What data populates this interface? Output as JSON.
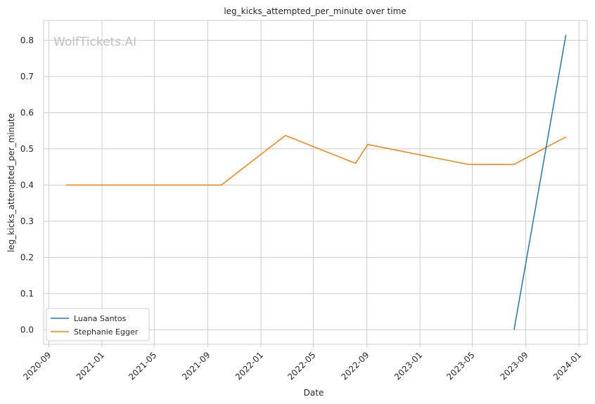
{
  "chart_data": {
    "type": "line",
    "title": "leg_kicks_attempted_per_minute over time",
    "xlabel": "Date",
    "ylabel": "leg_kicks_attempted_per_minute",
    "watermark": "WolfTickets.AI",
    "xlim": [
      "2020-08-20",
      "2024-01-20"
    ],
    "ylim": [
      -0.04,
      0.855
    ],
    "x_ticks": [
      "2020-09-01",
      "2021-01-01",
      "2021-05-01",
      "2021-09-01",
      "2022-01-01",
      "2022-05-01",
      "2022-09-01",
      "2023-01-01",
      "2023-05-01",
      "2023-09-01",
      "2024-01-01"
    ],
    "x_tick_labels": [
      "2020-09",
      "2021-01",
      "2021-05",
      "2021-09",
      "2022-01",
      "2022-05",
      "2022-09",
      "2023-01",
      "2023-05",
      "2023-09",
      "2024-01"
    ],
    "y_ticks": [
      0.0,
      0.1,
      0.2,
      0.3,
      0.4,
      0.5,
      0.6,
      0.7,
      0.8
    ],
    "y_tick_labels": [
      "0.0",
      "0.1",
      "0.2",
      "0.3",
      "0.4",
      "0.5",
      "0.6",
      "0.7",
      "0.8"
    ],
    "grid": true,
    "legend_position": "lower-left",
    "series": [
      {
        "name": "Luana Santos",
        "color": "#1f77b4",
        "x": [
          "2023-08-05",
          "2023-12-02"
        ],
        "y": [
          0.0,
          0.815
        ]
      },
      {
        "name": "Stephanie Egger",
        "color": "#ff7f0e",
        "x": [
          "2020-10-10",
          "2021-10-02",
          "2022-02-26",
          "2022-08-06",
          "2022-09-03",
          "2023-04-22",
          "2023-08-05",
          "2023-12-02"
        ],
        "y": [
          0.4,
          0.4,
          0.537,
          0.46,
          0.512,
          0.457,
          0.457,
          0.533
        ]
      }
    ]
  }
}
